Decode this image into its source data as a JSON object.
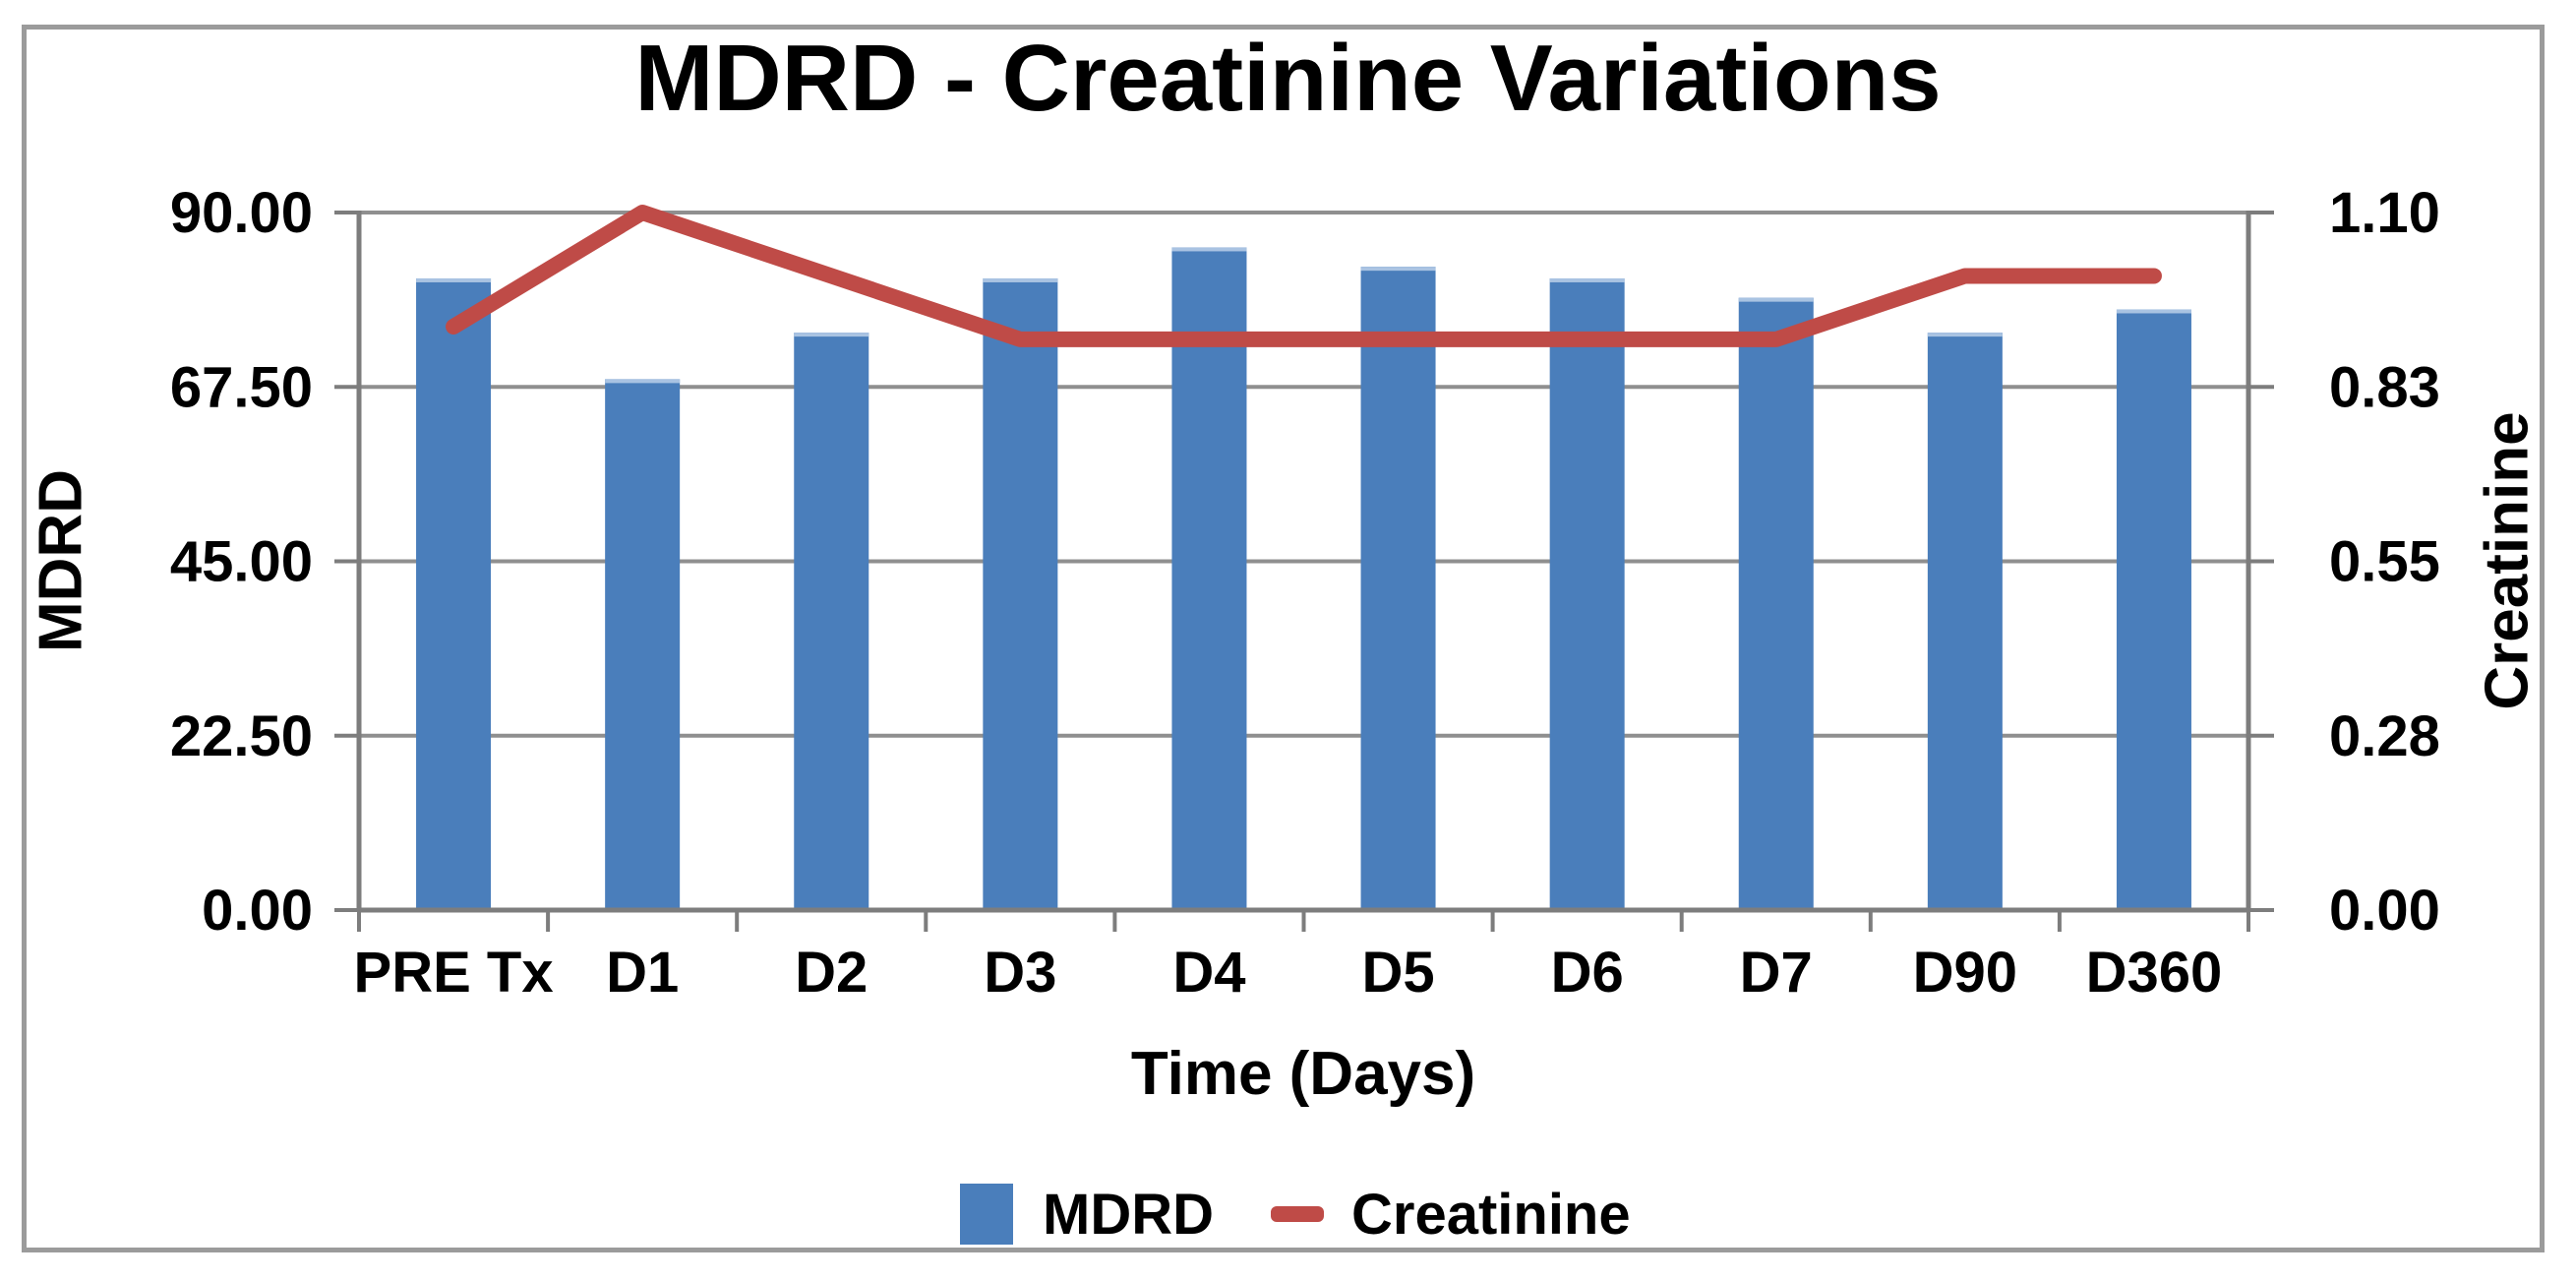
{
  "chart_data": {
    "type": "combo-bar-line",
    "title": "MDRD - Creatinine Variations",
    "categories": [
      "PRE Tx",
      "D1",
      "D2",
      "D3",
      "D4",
      "D5",
      "D6",
      "D7",
      "D90",
      "D360"
    ],
    "series": [
      {
        "name": "MDRD",
        "type": "bar",
        "axis": "left",
        "color": "#4a7ebb",
        "values": [
          81.5,
          68.5,
          74.5,
          81.5,
          85.5,
          83.0,
          81.5,
          79.0,
          74.5,
          77.5
        ]
      },
      {
        "name": "Creatinine",
        "type": "line",
        "axis": "right",
        "color": "#bf4b47",
        "values": [
          0.92,
          1.1,
          1.0,
          0.9,
          0.9,
          0.9,
          0.9,
          0.9,
          1.0,
          1.0
        ]
      }
    ],
    "left_axis": {
      "title": "MDRD",
      "min": 0,
      "max": 90,
      "tick_labels_top_to_bottom": [
        "90.00",
        "67.50",
        "45.00",
        "22.50",
        "0.00"
      ],
      "tick_values_top_to_bottom": [
        90,
        67.5,
        45,
        22.5,
        0
      ]
    },
    "right_axis": {
      "title": "Creatinine",
      "min": 0,
      "max": 1.1,
      "tick_labels_top_to_bottom": [
        "1.10",
        "0.83",
        "0.55",
        "0.28",
        "0.00"
      ],
      "tick_values_top_to_bottom": [
        1.1,
        0.825,
        0.55,
        0.275,
        0
      ]
    },
    "x_axis": {
      "title": "Time (Days)"
    },
    "legend": {
      "position": "bottom",
      "entries": [
        "MDRD",
        "Creatinine"
      ]
    },
    "grid": true,
    "colors": {
      "bar": "#4a7ebb",
      "bar_top_highlight": "#a9c3e2",
      "line": "#bf4b47",
      "gridline": "#8f8f8f",
      "axis": "#7d7d7d",
      "frame_border": "#9b9b9b",
      "text": "#000000",
      "background": "#ffffff"
    }
  }
}
